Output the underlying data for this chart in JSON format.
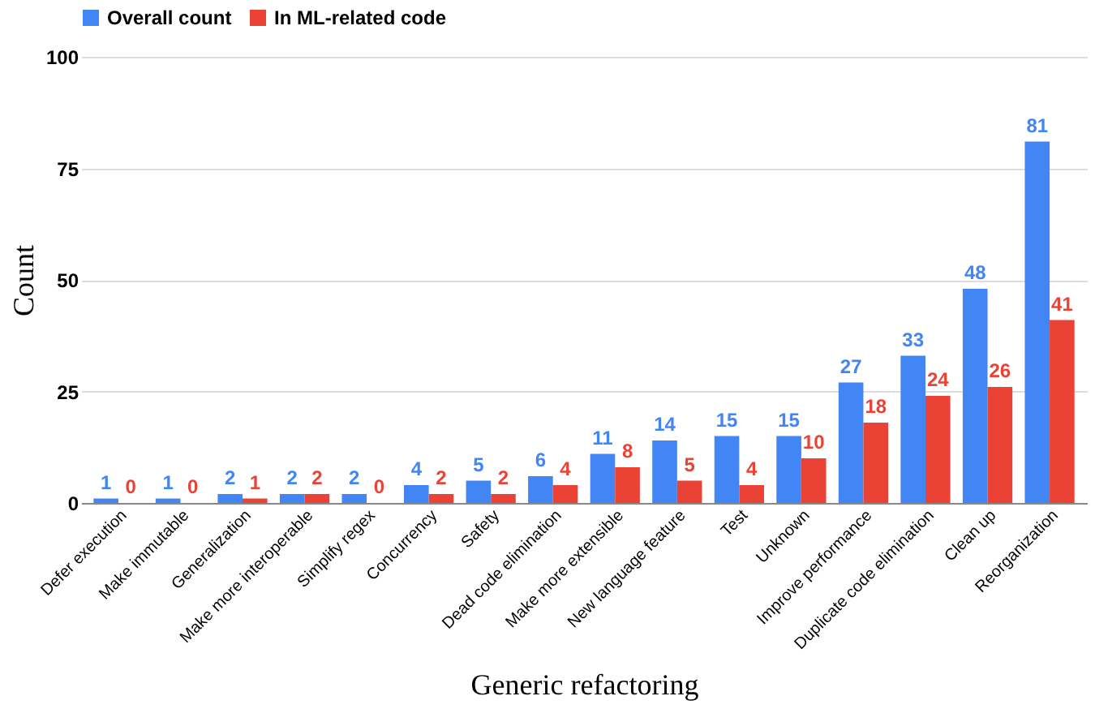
{
  "chart_data": {
    "type": "bar",
    "xlabel": "Generic refactoring",
    "ylabel": "Count",
    "categories": [
      "Defer execution",
      "Make immutable",
      "Generalization",
      "Make more interoperable",
      "Simplify regex",
      "Concurrency",
      "Safety",
      "Dead code elimination",
      "Make more extensible",
      "New language feature",
      "Test",
      "Unknown",
      "Improve performance",
      "Duplicate code elimination",
      "Clean up",
      "Reorganization"
    ],
    "series": [
      {
        "name": "Overall count",
        "color": "#4285f4",
        "values": [
          1,
          1,
          2,
          2,
          2,
          4,
          5,
          6,
          11,
          14,
          15,
          15,
          27,
          33,
          48,
          81
        ]
      },
      {
        "name": "In ML-related code",
        "color": "#ea4335",
        "values": [
          0,
          0,
          1,
          2,
          0,
          2,
          2,
          4,
          8,
          5,
          4,
          10,
          18,
          24,
          26,
          41
        ]
      }
    ],
    "ylim": [
      0,
      100
    ],
    "yticks": [
      0,
      25,
      50,
      75,
      100
    ],
    "grid": "y",
    "legend": "top",
    "data_labels": true
  }
}
